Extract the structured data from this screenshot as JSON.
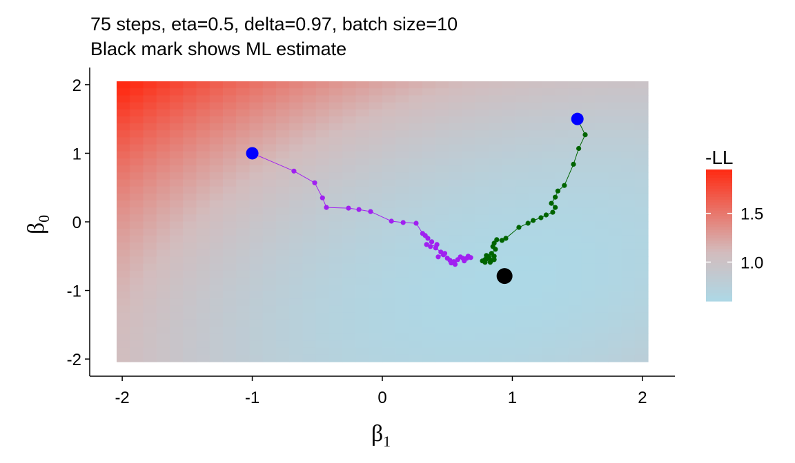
{
  "chart_data": {
    "type": "scatter",
    "title": "75 steps, eta=0.5, delta=0.97, batch size=10",
    "subtitle": "Black mark shows ML estimate",
    "xlabel": {
      "symbol": "β",
      "sub": "1"
    },
    "ylabel": {
      "symbol": "β",
      "sub": "0"
    },
    "xlim": [
      -2.25,
      2.25
    ],
    "ylim": [
      -2.25,
      2.25
    ],
    "x_ticks": [
      -2,
      -1,
      0,
      1,
      2
    ],
    "x_tick_labels": [
      "-2",
      "-1",
      "0",
      "1",
      "2"
    ],
    "y_ticks": [
      -2,
      -1,
      0,
      1,
      2
    ],
    "y_tick_labels": [
      "-2",
      "-1",
      "0",
      "1",
      "2"
    ],
    "grid": false,
    "heatmap": {
      "x_range": [
        -2,
        2
      ],
      "y_range": [
        -2,
        2
      ],
      "value_name": "-LL",
      "low_color": "#add8e6",
      "mid_color": "#d3bcbd",
      "high_color": "#ff2a12",
      "min": 0.6,
      "max": 1.95,
      "minimum_at": [
        0.95,
        -0.9
      ]
    },
    "legend": {
      "title": "-LL",
      "placement": "right",
      "tick_values": [
        1.5,
        1.0
      ],
      "tick_labels": [
        "1.5",
        "1.0"
      ]
    },
    "series": [
      {
        "color": "#a020f0",
        "start": [
          -1,
          1
        ],
        "points": [
          [
            -1.0,
            1.0
          ],
          [
            -0.68,
            0.74
          ],
          [
            -0.52,
            0.57
          ],
          [
            -0.46,
            0.35
          ],
          [
            -0.43,
            0.21
          ],
          [
            -0.26,
            0.2
          ],
          [
            -0.18,
            0.18
          ],
          [
            -0.09,
            0.15
          ],
          [
            0.07,
            0.01
          ],
          [
            0.16,
            -0.01
          ],
          [
            0.26,
            -0.02
          ],
          [
            0.31,
            -0.17
          ],
          [
            0.33,
            -0.2
          ],
          [
            0.35,
            -0.24
          ],
          [
            0.38,
            -0.29
          ],
          [
            0.34,
            -0.33
          ],
          [
            0.37,
            -0.36
          ],
          [
            0.42,
            -0.33
          ],
          [
            0.41,
            -0.38
          ],
          [
            0.45,
            -0.44
          ],
          [
            0.47,
            -0.48
          ],
          [
            0.43,
            -0.51
          ],
          [
            0.48,
            -0.46
          ],
          [
            0.5,
            -0.53
          ],
          [
            0.52,
            -0.56
          ],
          [
            0.55,
            -0.58
          ],
          [
            0.53,
            -0.6
          ],
          [
            0.56,
            -0.62
          ],
          [
            0.58,
            -0.55
          ],
          [
            0.6,
            -0.51
          ],
          [
            0.62,
            -0.53
          ],
          [
            0.63,
            -0.57
          ],
          [
            0.65,
            -0.53
          ],
          [
            0.66,
            -0.5
          ],
          [
            0.68,
            -0.52
          ]
        ]
      },
      {
        "color": "#006400",
        "start": [
          1.5,
          1.5
        ],
        "points": [
          [
            1.5,
            1.5
          ],
          [
            1.56,
            1.27
          ],
          [
            1.51,
            1.07
          ],
          [
            1.47,
            0.84
          ],
          [
            1.4,
            0.53
          ],
          [
            1.35,
            0.45
          ],
          [
            1.33,
            0.36
          ],
          [
            1.3,
            0.27
          ],
          [
            1.33,
            0.21
          ],
          [
            1.31,
            0.14
          ],
          [
            1.26,
            0.1
          ],
          [
            1.22,
            0.06
          ],
          [
            1.16,
            0.02
          ],
          [
            1.12,
            -0.02
          ],
          [
            1.05,
            -0.08
          ],
          [
            0.95,
            -0.24
          ],
          [
            0.92,
            -0.27
          ],
          [
            0.88,
            -0.26
          ],
          [
            0.86,
            -0.31
          ],
          [
            0.85,
            -0.36
          ],
          [
            0.87,
            -0.4
          ],
          [
            0.84,
            -0.46
          ],
          [
            0.86,
            -0.5
          ],
          [
            0.82,
            -0.52
          ],
          [
            0.84,
            -0.56
          ],
          [
            0.8,
            -0.49
          ],
          [
            0.79,
            -0.55
          ],
          [
            0.83,
            -0.59
          ],
          [
            0.81,
            -0.53
          ],
          [
            0.86,
            -0.55
          ],
          [
            0.81,
            -0.5
          ],
          [
            0.8,
            -0.53
          ],
          [
            0.77,
            -0.57
          ],
          [
            0.79,
            -0.59
          ]
        ]
      }
    ],
    "ml_estimate": [
      0.94,
      -0.79
    ]
  }
}
